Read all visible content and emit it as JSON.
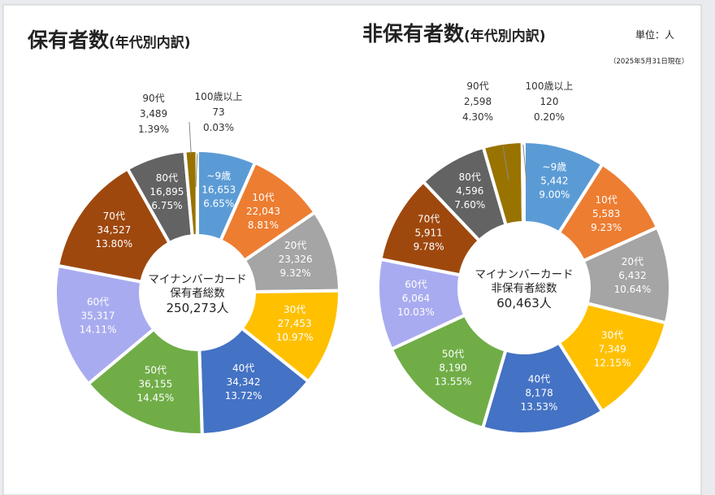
{
  "header": {
    "unit": "単位：人",
    "as_of": "（2025年5月31日現在）"
  },
  "chart_data": [
    {
      "type": "pie",
      "donut": true,
      "title": "保有者数",
      "subtitle": "(年代別内訳)",
      "center": {
        "line1": "マイナンバーカード",
        "line2": "保有者総数",
        "total": "250,273人"
      },
      "total": 250273,
      "unit": "人",
      "slices": [
        {
          "label": "~9歳",
          "value": 16653,
          "value_text": "16,653",
          "pct": "6.65%",
          "color": "#5b9bd5",
          "text_color": "#ffffff"
        },
        {
          "label": "10代",
          "value": 22043,
          "value_text": "22,043",
          "pct": "8.81%",
          "color": "#ed7d31",
          "text_color": "#ffffff"
        },
        {
          "label": "20代",
          "value": 23326,
          "value_text": "23,326",
          "pct": "9.32%",
          "color": "#a5a5a5",
          "text_color": "#ffffff"
        },
        {
          "label": "30代",
          "value": 27453,
          "value_text": "27,453",
          "pct": "10.97%",
          "color": "#ffc000",
          "text_color": "#ffffff"
        },
        {
          "label": "40代",
          "value": 34342,
          "value_text": "34,342",
          "pct": "13.72%",
          "color": "#4472c4",
          "text_color": "#ffffff"
        },
        {
          "label": "50代",
          "value": 36155,
          "value_text": "36,155",
          "pct": "14.45%",
          "color": "#70ad47",
          "text_color": "#ffffff"
        },
        {
          "label": "60代",
          "value": 35317,
          "value_text": "35,317",
          "pct": "14.11%",
          "color": "#a9abf0",
          "text_color": "#ffffff"
        },
        {
          "label": "70代",
          "value": 34527,
          "value_text": "34,527",
          "pct": "13.80%",
          "color": "#9e480e",
          "text_color": "#ffffff"
        },
        {
          "label": "80代",
          "value": 16895,
          "value_text": "16,895",
          "pct": "6.75%",
          "color": "#636363",
          "text_color": "#ffffff"
        },
        {
          "label": "90代",
          "value": 3489,
          "value_text": "3,489",
          "pct": "1.39%",
          "color": "#997300",
          "text_color": "#333333",
          "outside": true
        },
        {
          "label": "100歳以上",
          "value": 73,
          "value_text": "73",
          "pct": "0.03%",
          "color": "#264478",
          "text_color": "#333333",
          "outside": true
        }
      ]
    },
    {
      "type": "pie",
      "donut": true,
      "title": "非保有者数",
      "subtitle": "(年代別内訳)",
      "center": {
        "line1": "マイナンバーカード",
        "line2": "非保有者総数",
        "total": "60,463人"
      },
      "total": 60463,
      "unit": "人",
      "slices": [
        {
          "label": "~9歳",
          "value": 5442,
          "value_text": "5,442",
          "pct": "9.00%",
          "color": "#5b9bd5",
          "text_color": "#ffffff"
        },
        {
          "label": "10代",
          "value": 5583,
          "value_text": "5,583",
          "pct": "9.23%",
          "color": "#ed7d31",
          "text_color": "#ffffff"
        },
        {
          "label": "20代",
          "value": 6432,
          "value_text": "6,432",
          "pct": "10.64%",
          "color": "#a5a5a5",
          "text_color": "#ffffff"
        },
        {
          "label": "30代",
          "value": 7349,
          "value_text": "7,349",
          "pct": "12.15%",
          "color": "#ffc000",
          "text_color": "#ffffff"
        },
        {
          "label": "40代",
          "value": 8178,
          "value_text": "8,178",
          "pct": "13.53%",
          "color": "#4472c4",
          "text_color": "#ffffff"
        },
        {
          "label": "50代",
          "value": 8190,
          "value_text": "8,190",
          "pct": "13.55%",
          "color": "#70ad47",
          "text_color": "#ffffff"
        },
        {
          "label": "60代",
          "value": 6064,
          "value_text": "6,064",
          "pct": "10.03%",
          "color": "#a9abf0",
          "text_color": "#ffffff"
        },
        {
          "label": "70代",
          "value": 5911,
          "value_text": "5,911",
          "pct": "9.78%",
          "color": "#9e480e",
          "text_color": "#ffffff"
        },
        {
          "label": "80代",
          "value": 4596,
          "value_text": "4,596",
          "pct": "7.60%",
          "color": "#636363",
          "text_color": "#ffffff"
        },
        {
          "label": "90代",
          "value": 2598,
          "value_text": "2,598",
          "pct": "4.30%",
          "color": "#997300",
          "text_color": "#333333",
          "outside": true
        },
        {
          "label": "100歳以上",
          "value": 120,
          "value_text": "120",
          "pct": "0.20%",
          "color": "#264478",
          "text_color": "#333333",
          "outside": true
        }
      ]
    }
  ]
}
